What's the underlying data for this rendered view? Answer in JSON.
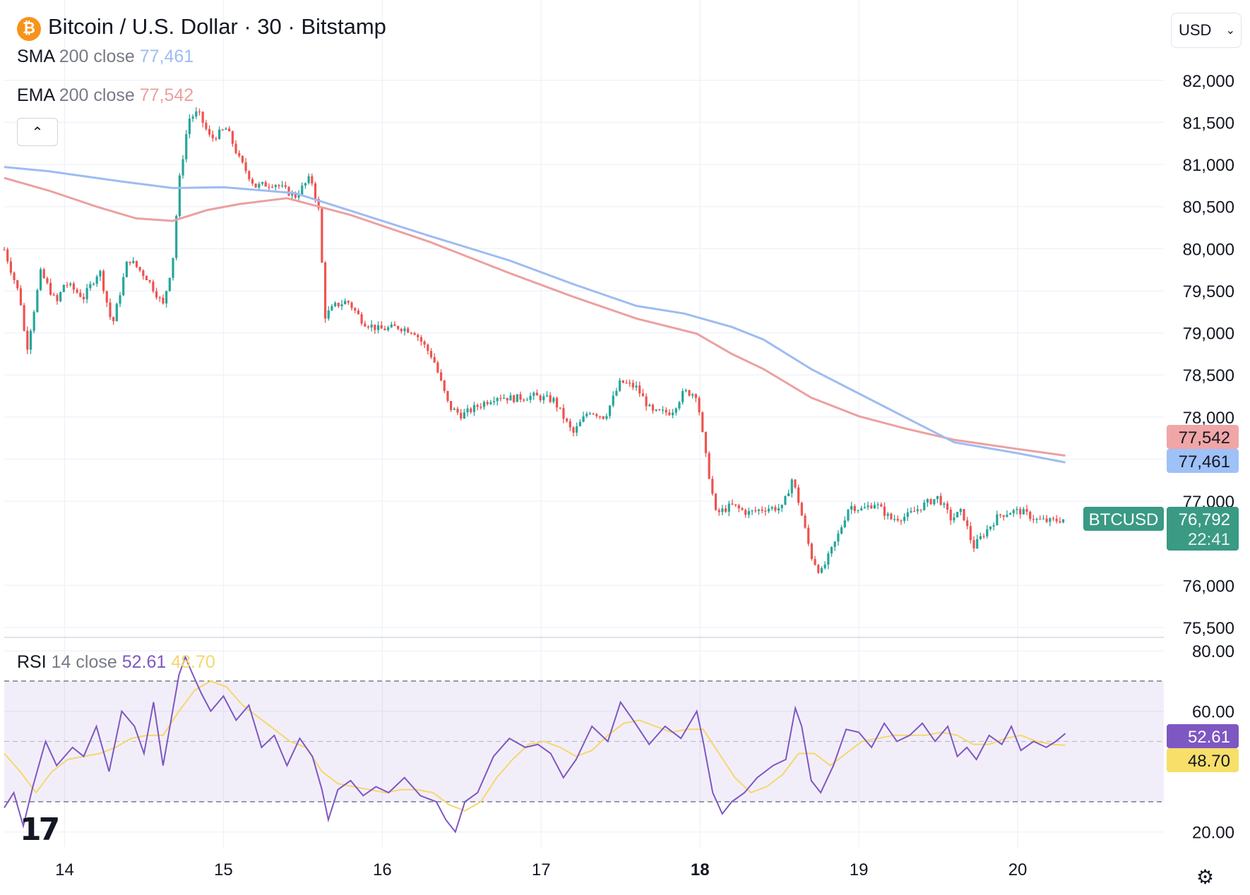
{
  "header": {
    "title": "Bitcoin / U.S. Dollar · 30 · Bitstamp",
    "coin_symbol": "₿",
    "sma": {
      "label": "SMA",
      "params": "200 close",
      "value": "77,461",
      "color": "#9dbcf2"
    },
    "ema": {
      "label": "EMA",
      "params": "200 close",
      "value": "77,542",
      "color": "#eca0a0"
    },
    "rsi": {
      "label": "RSI",
      "params": "14 close",
      "value": "52.61",
      "ma_value": "48.70"
    },
    "currency": "USD"
  },
  "price_axis": {
    "ticks": [
      "82,000",
      "81,500",
      "81,000",
      "80,500",
      "80,000",
      "79,500",
      "79,000",
      "78,500",
      "78,000",
      "77,000",
      "76,000",
      "75,500"
    ],
    "tick_values": [
      82000,
      81500,
      81000,
      80500,
      80000,
      79500,
      79000,
      78500,
      78000,
      77000,
      76000,
      75500
    ],
    "ylim": [
      75450,
      82300
    ]
  },
  "rsi_axis": {
    "ticks": [
      "80.00",
      "60.00",
      "20.00"
    ],
    "tick_values": [
      80,
      60,
      20
    ],
    "ylim": [
      15,
      84
    ],
    "band": [
      30,
      70
    ]
  },
  "time_axis": {
    "labels": [
      "14",
      "15",
      "16",
      "17",
      "18",
      "19",
      "20"
    ],
    "bold": "18",
    "day_start": 13.62,
    "day_end": 20.92
  },
  "price_labels": {
    "ema": {
      "text": "77,542",
      "color": "#f0a6a6"
    },
    "sma": {
      "text": "77,461",
      "color": "#9ec1f7"
    },
    "symbol": "BTCUSD",
    "last": "76,792",
    "countdown": "22:41",
    "last_color": "#3a9a83"
  },
  "rsi_labels": {
    "rsi": {
      "text": "52.61",
      "color": "#7e57c2"
    },
    "ma": {
      "text": "48.70",
      "color": "#f7df6a"
    }
  },
  "chart_data": {
    "type": "candlestick",
    "title": "Bitcoin / U.S. Dollar · 30 · Bitstamp",
    "interval": "30",
    "up_color": "#26a69a",
    "down_color": "#ef5350",
    "close_path": [
      [
        13.62,
        79990
      ],
      [
        13.72,
        79420
      ],
      [
        13.76,
        78780
      ],
      [
        13.85,
        79720
      ],
      [
        13.95,
        79350
      ],
      [
        14.0,
        79600
      ],
      [
        14.12,
        79420
      ],
      [
        14.22,
        79750
      ],
      [
        14.3,
        79080
      ],
      [
        14.4,
        79890
      ],
      [
        14.52,
        79650
      ],
      [
        14.62,
        79330
      ],
      [
        14.68,
        79850
      ],
      [
        14.72,
        80780
      ],
      [
        14.78,
        81540
      ],
      [
        14.84,
        81620
      ],
      [
        14.92,
        81300
      ],
      [
        15.02,
        81430
      ],
      [
        15.1,
        81060
      ],
      [
        15.2,
        80740
      ],
      [
        15.32,
        80780
      ],
      [
        15.45,
        80620
      ],
      [
        15.55,
        80850
      ],
      [
        15.6,
        80450
      ],
      [
        15.64,
        79200
      ],
      [
        15.7,
        79320
      ],
      [
        15.78,
        79380
      ],
      [
        15.88,
        79130
      ],
      [
        15.98,
        79040
      ],
      [
        16.1,
        79070
      ],
      [
        16.2,
        79020
      ],
      [
        16.32,
        78700
      ],
      [
        16.42,
        78120
      ],
      [
        16.5,
        78020
      ],
      [
        16.6,
        78130
      ],
      [
        16.72,
        78250
      ],
      [
        16.82,
        78220
      ],
      [
        16.95,
        78250
      ],
      [
        17.08,
        78200
      ],
      [
        17.2,
        77800
      ],
      [
        17.3,
        78080
      ],
      [
        17.4,
        78000
      ],
      [
        17.5,
        78420
      ],
      [
        17.6,
        78350
      ],
      [
        17.7,
        78050
      ],
      [
        17.82,
        78060
      ],
      [
        17.9,
        78300
      ],
      [
        17.98,
        78270
      ],
      [
        18.03,
        77600
      ],
      [
        18.1,
        76850
      ],
      [
        18.2,
        76950
      ],
      [
        18.3,
        76860
      ],
      [
        18.42,
        76920
      ],
      [
        18.52,
        76920
      ],
      [
        18.58,
        77270
      ],
      [
        18.62,
        77000
      ],
      [
        18.7,
        76350
      ],
      [
        18.76,
        76140
      ],
      [
        18.86,
        76550
      ],
      [
        18.94,
        76950
      ],
      [
        19.02,
        76900
      ],
      [
        19.1,
        76980
      ],
      [
        19.2,
        76790
      ],
      [
        19.3,
        76820
      ],
      [
        19.42,
        76970
      ],
      [
        19.5,
        77050
      ],
      [
        19.58,
        76790
      ],
      [
        19.65,
        76880
      ],
      [
        19.72,
        76450
      ],
      [
        19.78,
        76600
      ],
      [
        19.88,
        76830
      ],
      [
        19.96,
        76880
      ],
      [
        20.02,
        76880
      ],
      [
        20.12,
        76780
      ],
      [
        20.2,
        76760
      ],
      [
        20.3,
        76792
      ]
    ],
    "sma200": [
      [
        13.62,
        80970
      ],
      [
        13.9,
        80920
      ],
      [
        14.35,
        80800
      ],
      [
        14.68,
        80720
      ],
      [
        15.0,
        80730
      ],
      [
        15.45,
        80660
      ],
      [
        15.8,
        80450
      ],
      [
        16.3,
        80150
      ],
      [
        16.8,
        79860
      ],
      [
        17.2,
        79580
      ],
      [
        17.6,
        79320
      ],
      [
        17.9,
        79230
      ],
      [
        18.2,
        79070
      ],
      [
        18.4,
        78920
      ],
      [
        18.7,
        78570
      ],
      [
        19.0,
        78280
      ],
      [
        19.3,
        77990
      ],
      [
        19.6,
        77700
      ],
      [
        20.0,
        77570
      ],
      [
        20.3,
        77461
      ]
    ],
    "ema200": [
      [
        13.62,
        80840
      ],
      [
        13.9,
        80690
      ],
      [
        14.2,
        80500
      ],
      [
        14.45,
        80360
      ],
      [
        14.68,
        80330
      ],
      [
        14.9,
        80460
      ],
      [
        15.1,
        80530
      ],
      [
        15.4,
        80600
      ],
      [
        15.8,
        80400
      ],
      [
        16.3,
        80080
      ],
      [
        16.8,
        79710
      ],
      [
        17.2,
        79430
      ],
      [
        17.6,
        79170
      ],
      [
        17.98,
        78990
      ],
      [
        18.2,
        78750
      ],
      [
        18.4,
        78570
      ],
      [
        18.7,
        78230
      ],
      [
        19.0,
        78010
      ],
      [
        19.3,
        77860
      ],
      [
        19.6,
        77730
      ],
      [
        20.0,
        77620
      ],
      [
        20.3,
        77542
      ]
    ],
    "rsi14": [
      [
        13.62,
        28
      ],
      [
        13.68,
        33
      ],
      [
        13.74,
        22
      ],
      [
        13.8,
        35
      ],
      [
        13.88,
        50
      ],
      [
        13.95,
        42
      ],
      [
        14.05,
        48
      ],
      [
        14.12,
        45
      ],
      [
        14.2,
        55
      ],
      [
        14.28,
        40
      ],
      [
        14.36,
        60
      ],
      [
        14.44,
        55
      ],
      [
        14.5,
        46
      ],
      [
        14.56,
        63
      ],
      [
        14.62,
        42
      ],
      [
        14.68,
        60
      ],
      [
        14.72,
        72
      ],
      [
        14.76,
        78
      ],
      [
        14.8,
        73
      ],
      [
        14.86,
        66
      ],
      [
        14.92,
        60
      ],
      [
        15.0,
        65
      ],
      [
        15.08,
        57
      ],
      [
        15.16,
        62
      ],
      [
        15.24,
        48
      ],
      [
        15.32,
        52
      ],
      [
        15.4,
        42
      ],
      [
        15.48,
        51
      ],
      [
        15.56,
        45
      ],
      [
        15.62,
        34
      ],
      [
        15.66,
        24
      ],
      [
        15.72,
        34
      ],
      [
        15.8,
        37
      ],
      [
        15.88,
        32
      ],
      [
        15.96,
        35
      ],
      [
        16.04,
        33
      ],
      [
        16.14,
        38
      ],
      [
        16.24,
        32
      ],
      [
        16.34,
        30
      ],
      [
        16.4,
        24
      ],
      [
        16.46,
        20
      ],
      [
        16.52,
        30
      ],
      [
        16.6,
        33
      ],
      [
        16.7,
        45
      ],
      [
        16.8,
        51
      ],
      [
        16.9,
        48
      ],
      [
        16.98,
        49
      ],
      [
        17.06,
        46
      ],
      [
        17.14,
        38
      ],
      [
        17.22,
        44
      ],
      [
        17.32,
        55
      ],
      [
        17.42,
        50
      ],
      [
        17.5,
        63
      ],
      [
        17.58,
        57
      ],
      [
        17.68,
        49
      ],
      [
        17.78,
        55
      ],
      [
        17.88,
        51
      ],
      [
        17.98,
        60
      ],
      [
        18.02,
        50
      ],
      [
        18.08,
        33
      ],
      [
        18.14,
        26
      ],
      [
        18.2,
        30
      ],
      [
        18.28,
        33
      ],
      [
        18.36,
        38
      ],
      [
        18.46,
        42
      ],
      [
        18.54,
        44
      ],
      [
        18.6,
        61
      ],
      [
        18.64,
        55
      ],
      [
        18.7,
        37
      ],
      [
        18.76,
        33
      ],
      [
        18.84,
        42
      ],
      [
        18.92,
        54
      ],
      [
        19.0,
        53
      ],
      [
        19.08,
        48
      ],
      [
        19.16,
        56
      ],
      [
        19.24,
        50
      ],
      [
        19.32,
        52
      ],
      [
        19.4,
        56
      ],
      [
        19.48,
        50
      ],
      [
        19.56,
        55
      ],
      [
        19.62,
        45
      ],
      [
        19.68,
        48
      ],
      [
        19.74,
        44
      ],
      [
        19.82,
        52
      ],
      [
        19.9,
        49
      ],
      [
        19.96,
        55
      ],
      [
        20.02,
        47
      ],
      [
        20.1,
        50
      ],
      [
        20.18,
        48
      ],
      [
        20.24,
        50
      ],
      [
        20.3,
        52.61
      ]
    ],
    "rsi_ma": [
      [
        13.62,
        46
      ],
      [
        13.72,
        40
      ],
      [
        13.82,
        33
      ],
      [
        13.92,
        40
      ],
      [
        14.02,
        44
      ],
      [
        14.12,
        45
      ],
      [
        14.22,
        46
      ],
      [
        14.32,
        48
      ],
      [
        14.42,
        51
      ],
      [
        14.52,
        52
      ],
      [
        14.62,
        52
      ],
      [
        14.72,
        60
      ],
      [
        14.82,
        67
      ],
      [
        14.92,
        70
      ],
      [
        15.02,
        68
      ],
      [
        15.12,
        62
      ],
      [
        15.22,
        58
      ],
      [
        15.32,
        54
      ],
      [
        15.42,
        50
      ],
      [
        15.52,
        48
      ],
      [
        15.62,
        40
      ],
      [
        15.72,
        36
      ],
      [
        15.82,
        35
      ],
      [
        15.92,
        34
      ],
      [
        16.02,
        33
      ],
      [
        16.12,
        34
      ],
      [
        16.22,
        34
      ],
      [
        16.32,
        33
      ],
      [
        16.42,
        29
      ],
      [
        16.52,
        27
      ],
      [
        16.62,
        30
      ],
      [
        16.72,
        38
      ],
      [
        16.82,
        44
      ],
      [
        16.92,
        49
      ],
      [
        17.02,
        50
      ],
      [
        17.12,
        48
      ],
      [
        17.22,
        45
      ],
      [
        17.32,
        47
      ],
      [
        17.42,
        52
      ],
      [
        17.52,
        56
      ],
      [
        17.62,
        57
      ],
      [
        17.72,
        55
      ],
      [
        17.82,
        53
      ],
      [
        17.92,
        54
      ],
      [
        18.02,
        54
      ],
      [
        18.12,
        46
      ],
      [
        18.22,
        38
      ],
      [
        18.32,
        33
      ],
      [
        18.42,
        35
      ],
      [
        18.52,
        39
      ],
      [
        18.62,
        46
      ],
      [
        18.72,
        46
      ],
      [
        18.82,
        42
      ],
      [
        18.92,
        46
      ],
      [
        19.02,
        50
      ],
      [
        19.12,
        51
      ],
      [
        19.22,
        52
      ],
      [
        19.32,
        52
      ],
      [
        19.42,
        52
      ],
      [
        19.52,
        53
      ],
      [
        19.62,
        52
      ],
      [
        19.72,
        49
      ],
      [
        19.82,
        49
      ],
      [
        19.92,
        51
      ],
      [
        20.02,
        52
      ],
      [
        20.12,
        50
      ],
      [
        20.22,
        49
      ],
      [
        20.3,
        48.7
      ]
    ]
  }
}
